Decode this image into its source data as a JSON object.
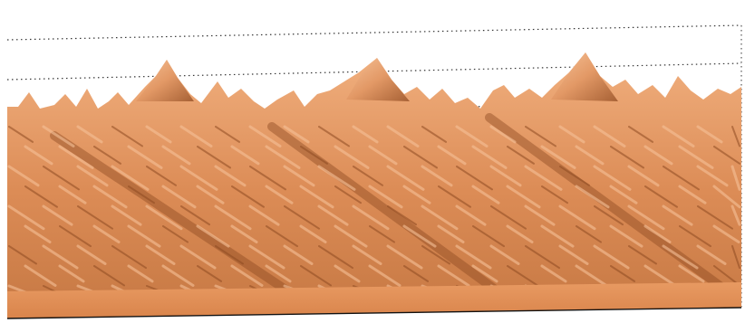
{
  "scene": {
    "subject": "surface-render",
    "colors": {
      "background": "#ffffff",
      "surface_light": "#f3b98c",
      "surface_mid": "#d98a55",
      "surface_dark": "#8a4a22",
      "surface_base": "#e7955c",
      "bounding_box_line": "#222222"
    }
  }
}
